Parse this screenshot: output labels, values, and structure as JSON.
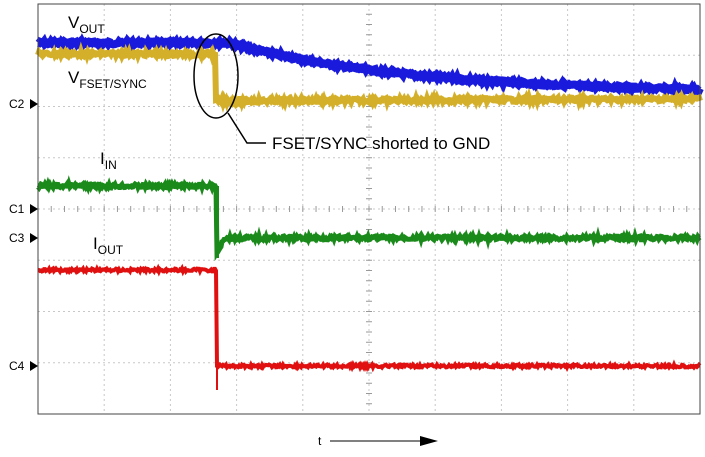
{
  "traces": [
    {
      "name": "V",
      "subscript": "OUT"
    },
    {
      "name": "V",
      "subscript": "FSET/SYNC"
    },
    {
      "name": "I",
      "subscript": "IN"
    },
    {
      "name": "I",
      "subscript": "OUT"
    }
  ],
  "channel_markers": [
    "C2",
    "C1",
    "C3",
    "C4"
  ],
  "annotation": "FSET/SYNC shorted to GND",
  "time_axis": "t"
}
